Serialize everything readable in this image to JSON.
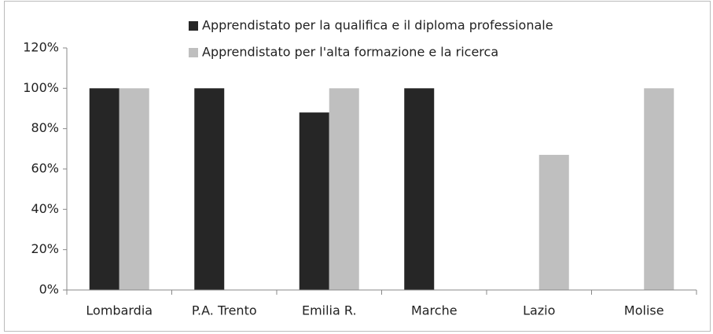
{
  "chart_data": {
    "type": "bar",
    "categories": [
      "Lombardia",
      "P.A. Trento",
      "Emilia R.",
      "Marche",
      "Lazio",
      "Molise"
    ],
    "series": [
      {
        "name": "Apprendistato per la qualifica e il diploma professionale",
        "color": "#262626",
        "values": [
          100,
          100,
          88,
          100,
          null,
          null
        ]
      },
      {
        "name": "Apprendistato per l'alta formazione e la ricerca",
        "color": "#bfbfbf",
        "values": [
          100,
          null,
          100,
          null,
          67,
          100
        ]
      }
    ],
    "ylim": [
      0,
      120
    ],
    "yticks": [
      {
        "value": 0,
        "label": "0%"
      },
      {
        "value": 20,
        "label": "20%"
      },
      {
        "value": 40,
        "label": "40%"
      },
      {
        "value": 60,
        "label": "60%"
      },
      {
        "value": 80,
        "label": "80%"
      },
      {
        "value": 100,
        "label": "100%"
      },
      {
        "value": 120,
        "label": "120%"
      }
    ],
    "legend": "top"
  }
}
